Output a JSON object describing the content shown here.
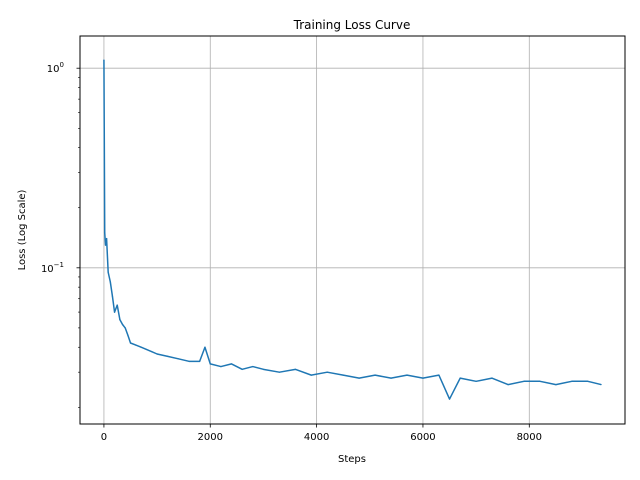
{
  "chart_data": {
    "type": "line",
    "title": "Training Loss Curve",
    "xlabel": "Steps",
    "ylabel": "Loss (Log Scale)",
    "xlim": [
      -450,
      9800
    ],
    "ylim": [
      0.0165,
      1.45
    ],
    "yscale": "log",
    "grid": true,
    "line_color": "#1f77b4",
    "xticks": [
      {
        "value": 0,
        "label": "0"
      },
      {
        "value": 2000,
        "label": "2000"
      },
      {
        "value": 4000,
        "label": "4000"
      },
      {
        "value": 6000,
        "label": "6000"
      },
      {
        "value": 8000,
        "label": "8000"
      }
    ],
    "yticks": [
      {
        "value": 1,
        "label": "10^0",
        "base": "10",
        "exp": "0"
      },
      {
        "value": 0.1,
        "label": "10^-1",
        "base": "10",
        "exp": "−1"
      }
    ],
    "series": [
      {
        "x": [
          0,
          15,
          30,
          50,
          80,
          120,
          160,
          200,
          250,
          300,
          350,
          400,
          450,
          500,
          600,
          700,
          800,
          900,
          1000,
          1200,
          1400,
          1600,
          1800,
          1900,
          2000,
          2200,
          2400,
          2600,
          2800,
          3000,
          3300,
          3600,
          3900,
          4200,
          4500,
          4800,
          5100,
          5400,
          5700,
          6000,
          6300,
          6500,
          6700,
          7000,
          7300,
          7600,
          7900,
          8200,
          8500,
          8800,
          9100,
          9350
        ],
        "values": [
          1.1,
          0.15,
          0.13,
          0.14,
          0.095,
          0.085,
          0.072,
          0.06,
          0.065,
          0.055,
          0.052,
          0.05,
          0.046,
          0.042,
          0.041,
          0.04,
          0.039,
          0.038,
          0.037,
          0.036,
          0.035,
          0.034,
          0.034,
          0.04,
          0.033,
          0.032,
          0.033,
          0.031,
          0.032,
          0.031,
          0.03,
          0.031,
          0.029,
          0.03,
          0.029,
          0.028,
          0.029,
          0.028,
          0.029,
          0.028,
          0.029,
          0.022,
          0.028,
          0.027,
          0.028,
          0.026,
          0.027,
          0.027,
          0.026,
          0.027,
          0.027,
          0.026
        ]
      }
    ]
  }
}
